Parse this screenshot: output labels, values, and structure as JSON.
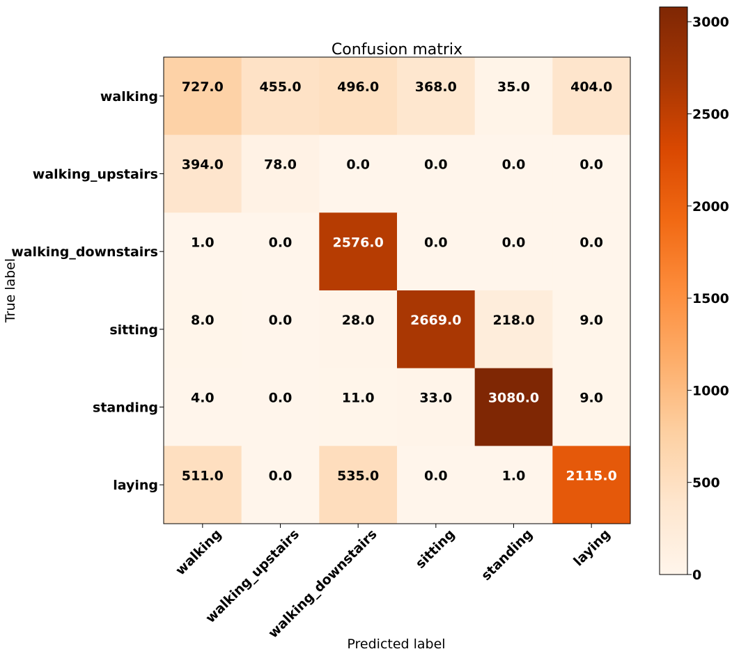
{
  "chart_data": {
    "type": "heatmap",
    "title": "Confusion matrix",
    "xlabel": "Predicted label",
    "ylabel": "True label",
    "x_categories": [
      "walking",
      "walking_upstairs",
      "walking_downstairs",
      "sitting",
      "standing",
      "laying"
    ],
    "y_categories": [
      "walking",
      "walking_upstairs",
      "walking_downstairs",
      "sitting",
      "standing",
      "laying"
    ],
    "values": [
      [
        727.0,
        455.0,
        496.0,
        368.0,
        35.0,
        404.0
      ],
      [
        394.0,
        78.0,
        0.0,
        0.0,
        0.0,
        0.0
      ],
      [
        1.0,
        0.0,
        2576.0,
        0.0,
        0.0,
        0.0
      ],
      [
        8.0,
        0.0,
        28.0,
        2669.0,
        218.0,
        9.0
      ],
      [
        4.0,
        0.0,
        11.0,
        33.0,
        3080.0,
        9.0
      ],
      [
        511.0,
        0.0,
        535.0,
        0.0,
        1.0,
        2115.0
      ]
    ],
    "cell_labels": [
      [
        "727.0",
        "455.0",
        "496.0",
        "368.0",
        "35.0",
        "404.0"
      ],
      [
        "394.0",
        "78.0",
        "0.0",
        "0.0",
        "0.0",
        "0.0"
      ],
      [
        "1.0",
        "0.0",
        "2576.0",
        "0.0",
        "0.0",
        "0.0"
      ],
      [
        "8.0",
        "0.0",
        "28.0",
        "2669.0",
        "218.0",
        "9.0"
      ],
      [
        "4.0",
        "0.0",
        "11.0",
        "33.0",
        "3080.0",
        "9.0"
      ],
      [
        "511.0",
        "0.0",
        "535.0",
        "0.0",
        "1.0",
        "2115.0"
      ]
    ],
    "colormap": "Oranges",
    "colorbar": {
      "range": [
        0,
        3080
      ],
      "ticks": [
        0,
        500,
        1000,
        1500,
        2000,
        2500,
        3000
      ],
      "tick_labels": [
        "0",
        "500",
        "1000",
        "1500",
        "2000",
        "2500",
        "3000"
      ],
      "position": "right"
    },
    "x_tick_rotation_deg": 45,
    "grid": false
  }
}
